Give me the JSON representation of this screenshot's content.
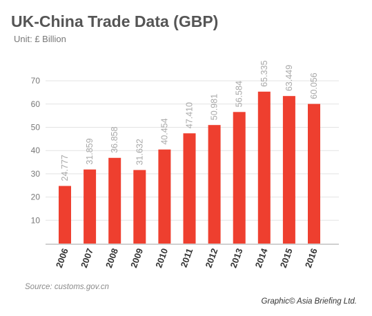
{
  "header": {
    "title": "UK-China Trade Data (GBP)",
    "subtitle": "Unit: £ Billion"
  },
  "footer": {
    "source": "Source: customs.gov.cn",
    "credit": "Graphic© Asia Briefing Ltd."
  },
  "colors": {
    "bar": "#EE3F2F",
    "grid": "#E3E3E3",
    "axis": "#D0D0D0",
    "tick_text": "#777777",
    "label_text": "#A8A8A8",
    "category_text": "#333333"
  },
  "chart_data": {
    "type": "bar",
    "title": "UK-China Trade Data (GBP)",
    "subtitle": "Unit: £ Billion",
    "categories": [
      "2006",
      "2007",
      "2008",
      "2009",
      "2010",
      "2011",
      "2012",
      "2013",
      "2014",
      "2015",
      "2016"
    ],
    "values": [
      24.777,
      31.859,
      36.858,
      31.632,
      40.454,
      47.41,
      50.981,
      56.584,
      65.335,
      63.449,
      60.056
    ],
    "data_labels": [
      "24.777",
      "31.859",
      "36.858",
      "31.632",
      "40.454",
      "47.410",
      "50.981",
      "56.584",
      "65.335",
      "63.449",
      "60.056"
    ],
    "yticks": [
      "10",
      "20",
      "30",
      "40",
      "50",
      "60",
      "70"
    ],
    "ylim": [
      0,
      70
    ],
    "xlabel": "",
    "ylabel": "",
    "grid": true,
    "legend": "none"
  }
}
